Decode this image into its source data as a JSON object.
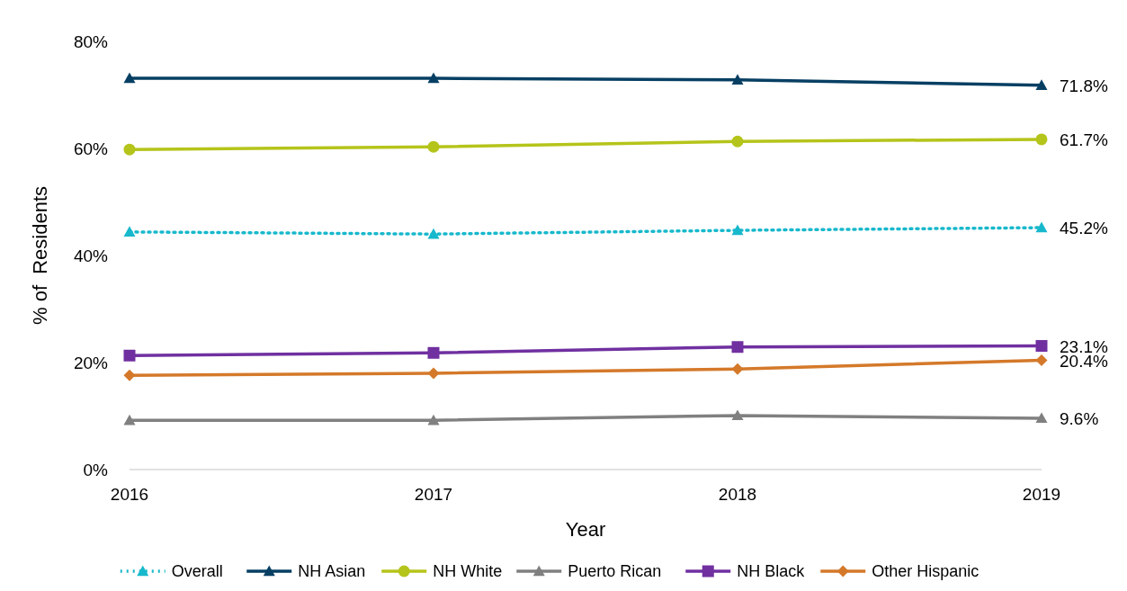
{
  "chart_data": {
    "type": "line",
    "xlabel": "Year",
    "ylabel": "% of  Residents",
    "categories": [
      "2016",
      "2017",
      "2018",
      "2019"
    ],
    "ylim": [
      0,
      80
    ],
    "yticks": [
      {
        "value": 0,
        "label": "0%"
      },
      {
        "value": 20,
        "label": "20%"
      },
      {
        "value": 40,
        "label": "40%"
      },
      {
        "value": 60,
        "label": "60%"
      },
      {
        "value": 80,
        "label": "80%"
      }
    ],
    "grid": false,
    "legend": "bottom",
    "series": [
      {
        "name": "Overall",
        "color": "#17b8cc",
        "marker": "triangle",
        "line_style": "dotted",
        "values": [
          44.4,
          44.0,
          44.7,
          45.2
        ],
        "value_labels": [
          null,
          null,
          null,
          "45.2%"
        ]
      },
      {
        "name": "NH Asian",
        "color": "#073f63",
        "marker": "triangle",
        "line_style": "solid",
        "values": [
          73.1,
          73.1,
          72.8,
          71.8
        ],
        "value_labels": [
          null,
          null,
          null,
          "71.8%"
        ]
      },
      {
        "name": "NH White",
        "color": "#b5c41a",
        "marker": "circle",
        "line_style": "solid",
        "values": [
          59.8,
          60.3,
          61.3,
          61.7
        ],
        "value_labels": [
          null,
          null,
          null,
          "61.7%"
        ]
      },
      {
        "name": "Puerto Rican",
        "color": "#808080",
        "marker": "triangle",
        "line_style": "solid",
        "values": [
          9.2,
          9.2,
          10.1,
          9.6
        ],
        "value_labels": [
          null,
          null,
          null,
          "9.6%"
        ]
      },
      {
        "name": "NH Black",
        "color": "#7030a0",
        "marker": "square",
        "line_style": "solid",
        "values": [
          21.3,
          21.8,
          22.9,
          23.1
        ],
        "value_labels": [
          null,
          null,
          null,
          "23.1%"
        ]
      },
      {
        "name": "Other Hispanic",
        "color": "#d4792a",
        "marker": "diamond",
        "line_style": "solid",
        "values": [
          17.6,
          18.0,
          18.8,
          20.4
        ],
        "value_labels": [
          null,
          null,
          null,
          "20.4%"
        ]
      }
    ]
  }
}
